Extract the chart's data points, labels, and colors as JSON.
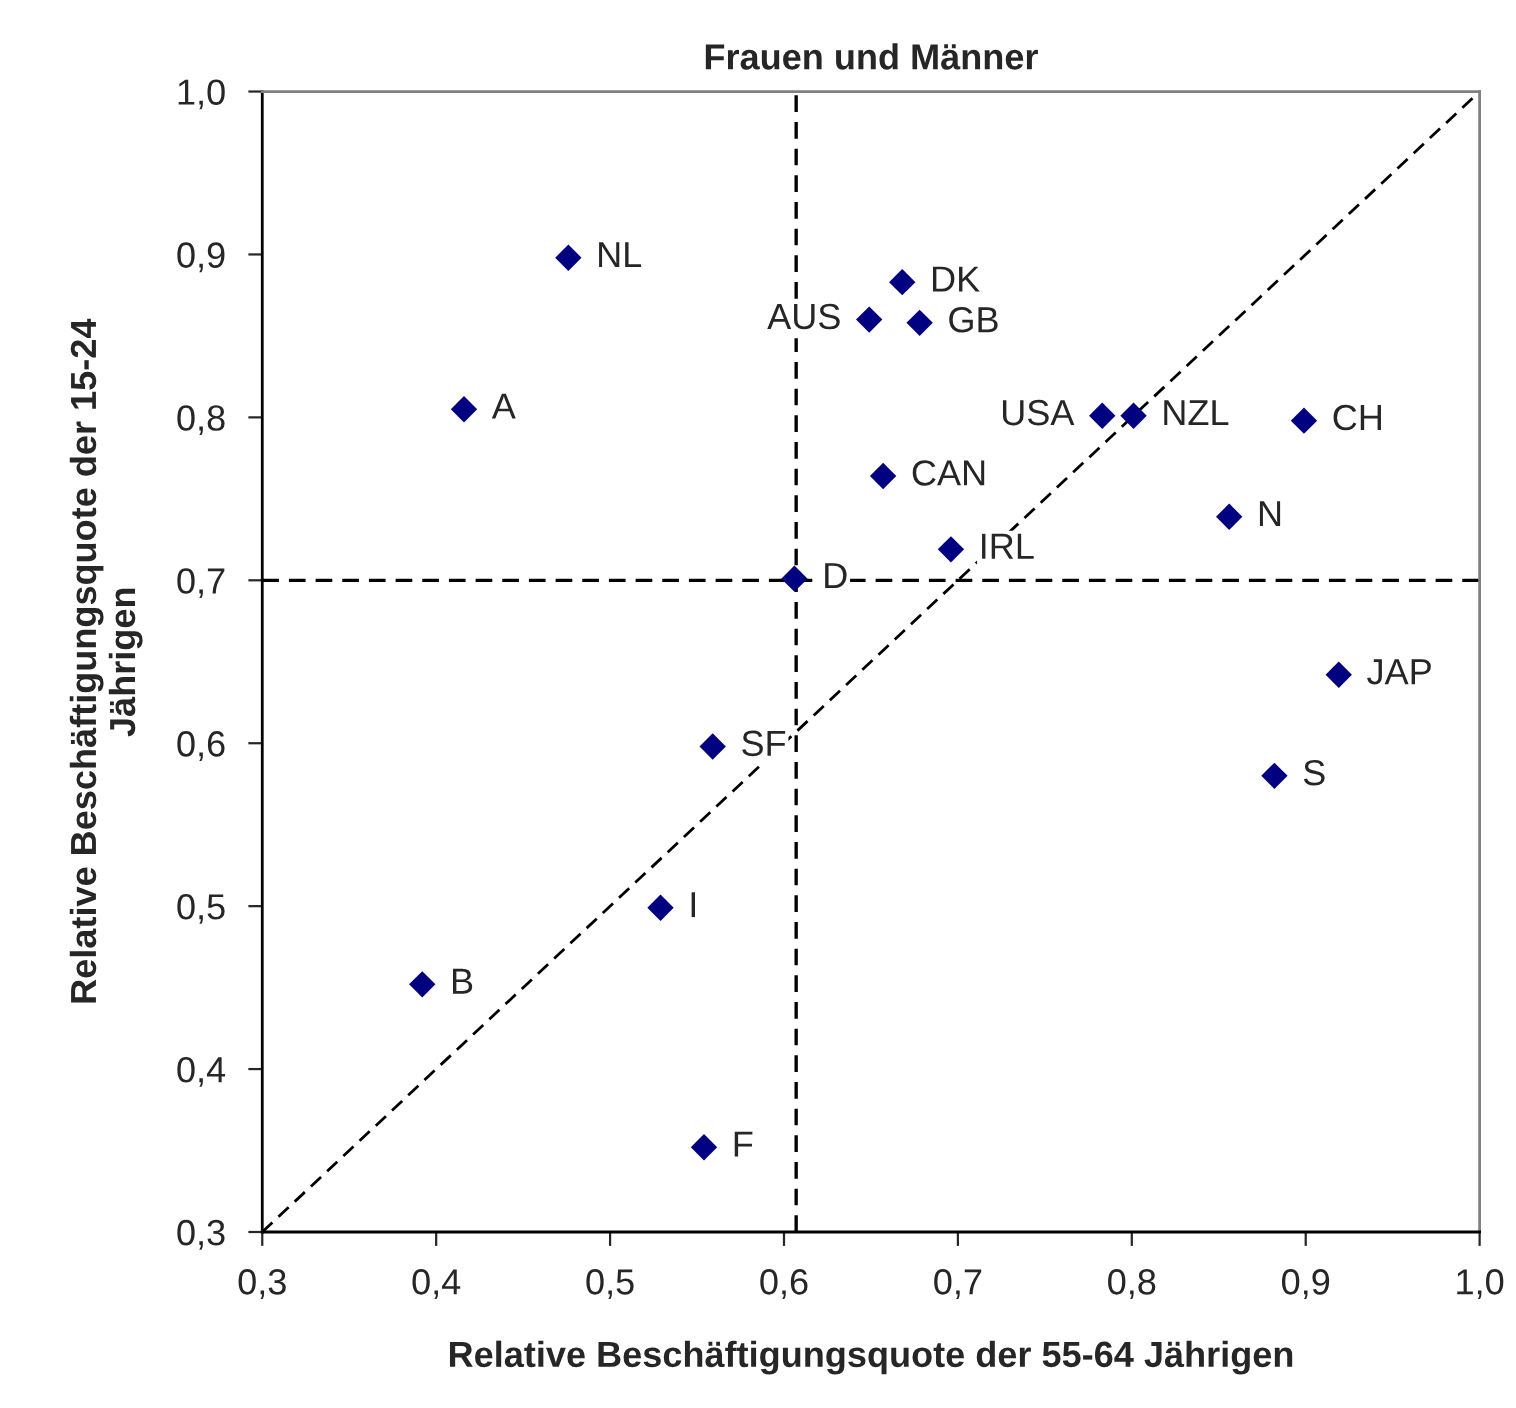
{
  "chart_data": {
    "type": "scatter",
    "title": "Frauen und Männer",
    "xlabel": "Relative Beschäftigungsquote der 55-64 Jährigen",
    "ylabel": "Relative Beschäftigungsquote der 15-24\nJährigen",
    "xlim": [
      0.3,
      1.0
    ],
    "ylim": [
      0.3,
      1.0
    ],
    "xticks": [
      {
        "value": 0.3,
        "label": "0,3"
      },
      {
        "value": 0.4,
        "label": "0,4"
      },
      {
        "value": 0.5,
        "label": "0,5"
      },
      {
        "value": 0.6,
        "label": "0,6"
      },
      {
        "value": 0.7,
        "label": "0,7"
      },
      {
        "value": 0.8,
        "label": "0,8"
      },
      {
        "value": 0.9,
        "label": "0,9"
      },
      {
        "value": 1.0,
        "label": "1,0"
      }
    ],
    "yticks": [
      {
        "value": 0.3,
        "label": "0,3"
      },
      {
        "value": 0.4,
        "label": "0,4"
      },
      {
        "value": 0.5,
        "label": "0,5"
      },
      {
        "value": 0.6,
        "label": "0,6"
      },
      {
        "value": 0.7,
        "label": "0,7"
      },
      {
        "value": 0.8,
        "label": "0,8"
      },
      {
        "value": 0.9,
        "label": "0,9"
      },
      {
        "value": 1.0,
        "label": "1,0"
      }
    ],
    "grid": false,
    "legend": false,
    "series": [
      {
        "color": "#000080",
        "marker": "diamond",
        "x": [
          0.476,
          0.668,
          0.649,
          0.678,
          0.416,
          0.783,
          0.801,
          0.899,
          0.657,
          0.856,
          0.696,
          0.606,
          0.919,
          0.559,
          0.882,
          0.529,
          0.392,
          0.554
        ],
        "values": [
          0.898,
          0.883,
          0.86,
          0.858,
          0.805,
          0.801,
          0.801,
          0.798,
          0.764,
          0.739,
          0.719,
          0.701,
          0.642,
          0.598,
          0.58,
          0.499,
          0.452,
          0.352
        ]
      },
      {
        "type": "line",
        "color": "#000000",
        "line_style": "dashed",
        "marker": "none",
        "x": [
          0.3,
          1.0
        ],
        "values": [
          0.3,
          1.0
        ]
      }
    ],
    "ref_lines": [
      {
        "axis": "x",
        "value": 0.607,
        "color": "#000000",
        "line_style": "dashed"
      },
      {
        "axis": "y",
        "value": 0.7,
        "color": "#000000",
        "line_style": "dashed"
      }
    ],
    "annotations": [
      {
        "text": "NL",
        "x": 0.476,
        "y": 0.898
      },
      {
        "text": "DK",
        "x": 0.668,
        "y": 0.883
      },
      {
        "text": "AUS",
        "x": 0.649,
        "y": 0.86
      },
      {
        "text": "GB",
        "x": 0.678,
        "y": 0.858
      },
      {
        "text": "A",
        "x": 0.416,
        "y": 0.805
      },
      {
        "text": "USA",
        "x": 0.783,
        "y": 0.801
      },
      {
        "text": "NZL",
        "x": 0.801,
        "y": 0.801
      },
      {
        "text": "CH",
        "x": 0.899,
        "y": 0.798
      },
      {
        "text": "CAN",
        "x": 0.657,
        "y": 0.764
      },
      {
        "text": "N",
        "x": 0.856,
        "y": 0.739
      },
      {
        "text": "IRL",
        "x": 0.696,
        "y": 0.719
      },
      {
        "text": "D",
        "x": 0.606,
        "y": 0.701
      },
      {
        "text": "JAP",
        "x": 0.919,
        "y": 0.642
      },
      {
        "text": "SF",
        "x": 0.559,
        "y": 0.598
      },
      {
        "text": "S",
        "x": 0.882,
        "y": 0.58
      },
      {
        "text": "I",
        "x": 0.529,
        "y": 0.499
      },
      {
        "text": "B",
        "x": 0.392,
        "y": 0.452
      },
      {
        "text": "F",
        "x": 0.554,
        "y": 0.352
      }
    ]
  }
}
